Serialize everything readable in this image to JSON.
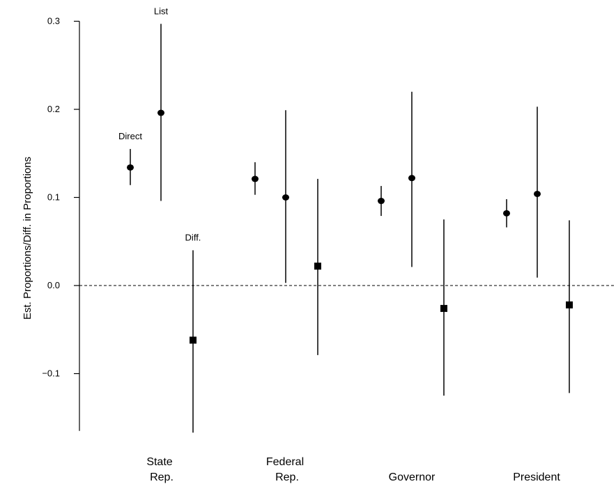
{
  "chart_data": {
    "type": "scatter",
    "title": "",
    "xlabel": "",
    "ylabel": "Est. Proportions/Diff. in Proportions",
    "ylim": [
      -0.165,
      0.3
    ],
    "yticks": [
      -0.1,
      0.0,
      0.1,
      0.2,
      0.3
    ],
    "ytick_labels": [
      "−0.1",
      "0.0",
      "0.1",
      "0.2",
      "0.3"
    ],
    "reference_line": {
      "y": 0.0,
      "style": "dashed"
    },
    "grid": false,
    "categories": [
      {
        "line1": "State",
        "line2": "Rep."
      },
      {
        "line1": "Federal",
        "line2": "Rep."
      },
      {
        "line1": "",
        "line2": "Governor"
      },
      {
        "line1": "",
        "line2": "President"
      }
    ],
    "series": [
      {
        "key": "direct",
        "marker": "circle",
        "estimates": [
          0.134,
          0.121,
          0.096,
          0.082
        ],
        "lower": [
          0.114,
          0.103,
          0.079,
          0.066
        ],
        "upper": [
          0.155,
          0.14,
          0.113,
          0.098
        ]
      },
      {
        "key": "list",
        "marker": "circle",
        "estimates": [
          0.196,
          0.1,
          0.122,
          0.104
        ],
        "lower": [
          0.096,
          0.003,
          0.021,
          0.009
        ],
        "upper": [
          0.297,
          0.199,
          0.22,
          0.203
        ]
      },
      {
        "key": "diff",
        "marker": "square",
        "estimates": [
          -0.062,
          0.022,
          -0.026,
          -0.022
        ],
        "lower": [
          -0.167,
          -0.079,
          -0.125,
          -0.122
        ],
        "upper": [
          0.04,
          0.121,
          0.075,
          0.074
        ]
      }
    ],
    "annotations": [
      {
        "text": "Direct",
        "series": "direct",
        "category": 0
      },
      {
        "text": "List",
        "series": "list",
        "category": 0
      },
      {
        "text": "Diff.",
        "series": "diff",
        "category": 0
      }
    ]
  }
}
